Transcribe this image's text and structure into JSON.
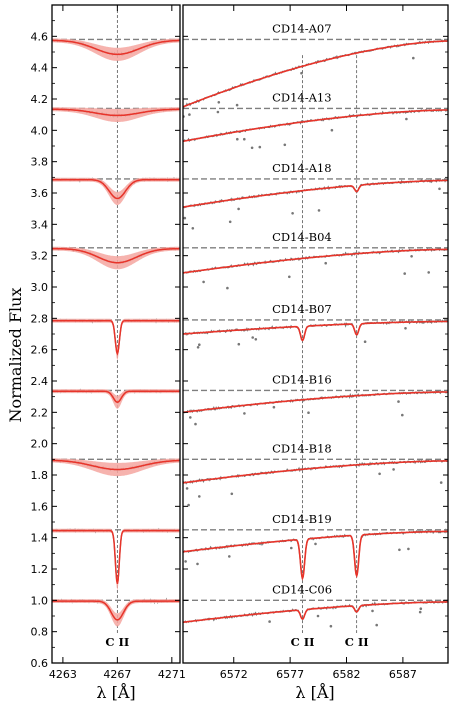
{
  "chart_data": {
    "type": "line",
    "ylabel": "Normalized Flux",
    "ylim": [
      0.6,
      4.8
    ],
    "yticks": [
      "0.6",
      "0.8",
      "1.0",
      "1.2",
      "1.4",
      "1.6",
      "1.8",
      "2.0",
      "2.2",
      "2.4",
      "2.6",
      "2.8",
      "3.0",
      "3.2",
      "3.4",
      "3.6",
      "3.8",
      "4.0",
      "4.2",
      "4.4",
      "4.6"
    ],
    "panels": [
      {
        "xlabel": "λ [Å]",
        "xlim": [
          4262.2,
          4271.6
        ],
        "xticks": [
          "4263",
          "4267",
          "4271"
        ],
        "line_markers": [
          {
            "wavelength": 4267.0,
            "label": "C II"
          }
        ]
      },
      {
        "xlabel": "λ [Å]",
        "xlim": [
          6567.5,
          6591.0
        ],
        "xticks": [
          "6572",
          "6577",
          "6582",
          "6587"
        ],
        "line_markers": [
          {
            "wavelength": 6578.1,
            "label": "C II"
          },
          {
            "wavelength": 6582.9,
            "label": "C II"
          }
        ]
      }
    ],
    "series": [
      {
        "name": "CD14-A07",
        "offset": 4.58,
        "d4267": 0.09,
        "w4267": 1.6,
        "d6578": 0.0,
        "d6583": 0.0,
        "cont6570": 0.42
      },
      {
        "name": "CD14-A13",
        "offset": 4.14,
        "d4267": 0.04,
        "w4267": 1.6,
        "d6578": 0.0,
        "d6583": 0.0,
        "cont6570": 0.2
      },
      {
        "name": "CD14-A18",
        "offset": 3.69,
        "d4267": 0.12,
        "w4267": 0.6,
        "d6578": 0.0,
        "d6583": 0.04,
        "cont6570": 0.17
      },
      {
        "name": "CD14-B04",
        "offset": 3.25,
        "d4267": 0.09,
        "w4267": 1.4,
        "d6578": 0.0,
        "d6583": 0.0,
        "cont6570": 0.15
      },
      {
        "name": "CD14-B07",
        "offset": 2.79,
        "d4267": 0.21,
        "w4267": 0.15,
        "d6578": 0.09,
        "d6583": 0.07,
        "cont6570": 0.08
      },
      {
        "name": "CD14-B16",
        "offset": 2.34,
        "d4267": 0.07,
        "w4267": 0.3,
        "d6578": 0.0,
        "d6583": 0.0,
        "cont6570": 0.13
      },
      {
        "name": "CD14-B18",
        "offset": 1.9,
        "d4267": 0.06,
        "w4267": 1.8,
        "d6578": 0.0,
        "d6583": 0.0,
        "cont6570": 0.14
      },
      {
        "name": "CD14-B19",
        "offset": 1.45,
        "d4267": 0.34,
        "w4267": 0.14,
        "d6578": 0.25,
        "d6583": 0.26,
        "cont6570": 0.13
      },
      {
        "name": "CD14-C06",
        "offset": 1.0,
        "d4267": 0.12,
        "w4267": 0.45,
        "d6578": 0.06,
        "d6583": 0.04,
        "cont6570": 0.13
      }
    ],
    "colors": {
      "observed": "#777777",
      "model": "#e8342a",
      "model_band": "#f4a6a0",
      "continuum": "#7f7f7f"
    },
    "legend": "none",
    "grid": false
  }
}
